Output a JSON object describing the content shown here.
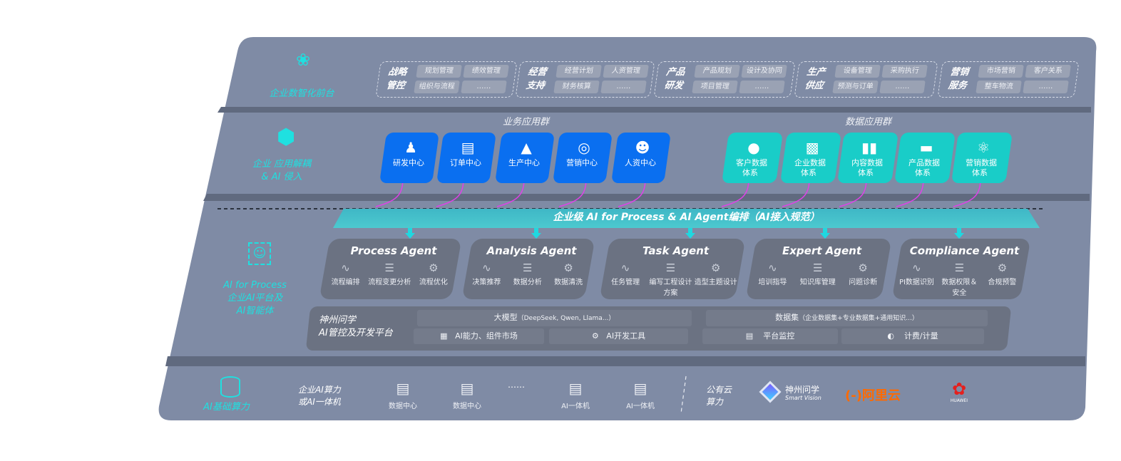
{
  "front_layer": {
    "label": "企业数智化前台",
    "icon": "brain-icon",
    "groups": [
      {
        "title": [
          "战略",
          "管控"
        ],
        "items": [
          "规划管理",
          "绩效管理",
          "组织与流程",
          "……"
        ]
      },
      {
        "title": [
          "经营",
          "支持"
        ],
        "items": [
          "经营计划",
          "人资管理",
          "财务核算",
          "……"
        ]
      },
      {
        "title": [
          "产品",
          "研发"
        ],
        "items": [
          "产品规划",
          "设计及协同",
          "项目管理",
          "……"
        ]
      },
      {
        "title": [
          "生产",
          "供应"
        ],
        "items": [
          "设备管理",
          "采购执行",
          "预测与订单",
          "……"
        ]
      },
      {
        "title": [
          "营销",
          "服务"
        ],
        "items": [
          "市场营销",
          "客户关系",
          "整车物流",
          "……"
        ]
      }
    ]
  },
  "app_layer": {
    "label": [
      "企业 应用解耦",
      "& AI 侵入"
    ],
    "icon": "network-node-icon",
    "business": {
      "title": "业务应用群",
      "cards": [
        {
          "label": "研发中心",
          "icon": "users-icon"
        },
        {
          "label": "订单中心",
          "icon": "clipboard-icon"
        },
        {
          "label": "生产中心",
          "icon": "factory-icon"
        },
        {
          "label": "营销中心",
          "icon": "target-icon"
        },
        {
          "label": "人资中心",
          "icon": "person-icon"
        }
      ]
    },
    "data": {
      "title": "数据应用群",
      "cards": [
        {
          "label": [
            "客户数据",
            "体系"
          ],
          "icon": "user-icon"
        },
        {
          "label": [
            "企业数据",
            "体系"
          ],
          "icon": "building-icon"
        },
        {
          "label": [
            "内容数据",
            "体系"
          ],
          "icon": "books-icon"
        },
        {
          "label": [
            "产品数据",
            "体系"
          ],
          "icon": "car-icon"
        },
        {
          "label": [
            "营销数据",
            "体系"
          ],
          "icon": "atom-icon"
        }
      ]
    }
  },
  "banner": "企业级 AI for Process & AI Agent编排（AI接入规范）",
  "ai_layer": {
    "label": [
      "AI for Process",
      "企业AI平台及",
      "AI智能体"
    ],
    "icon": "face-scan-icon",
    "agents": [
      {
        "name": "Process Agent",
        "items": [
          "流程编排",
          "流程变更分析",
          "流程优化"
        ]
      },
      {
        "name": "Analysis Agent",
        "items": [
          "决策推荐",
          "数据分析",
          "数据清洗"
        ]
      },
      {
        "name": "Task Agent",
        "items": [
          "任务管理",
          "编写工程设计方案",
          "造型主题设计"
        ]
      },
      {
        "name": "Expert Agent",
        "items": [
          "培训指导",
          "知识库管理",
          "问题诊断"
        ]
      },
      {
        "name": "Compliance Agent",
        "items": [
          "PI数据识别",
          "数据权限＆安全",
          "合规预警"
        ]
      }
    ],
    "platform": {
      "title": [
        "神州问学",
        "AI管控及开发平台"
      ],
      "model": "大模型",
      "model_note": "（DeepSeek, Qwen, Llama...）",
      "dataset": "数据集",
      "dataset_note": "（企业数据集+专业数据集+通用知识...）",
      "tools": [
        "AI能力、组件市场",
        "AI开发工具",
        "平台监控",
        "计费/计量"
      ]
    }
  },
  "infra_layer": {
    "label": "AI基础算力",
    "icon": "database-icon",
    "enterprise_label": [
      "企业AI算力",
      "或AI一体机"
    ],
    "servers": [
      "数据中心",
      "数据中心",
      "AI一体机",
      "AI一体机"
    ],
    "ellipsis": "……",
    "public_label": [
      "公有云",
      "算力"
    ],
    "logos": {
      "smartvision": [
        "神州问学",
        "Smart Vision"
      ],
      "aliyun": "阿里云",
      "huawei": "HUAWEI"
    }
  },
  "colors": {
    "panel": "#7f8ba5",
    "business_card": "#0a6ff0",
    "data_card": "#19cdc8",
    "agent": "#6b7282",
    "accent_cyan": "#1fe0e0",
    "arrow": "#e040e8",
    "aliyun": "#ff6a00",
    "huawei": "#e4201e"
  }
}
